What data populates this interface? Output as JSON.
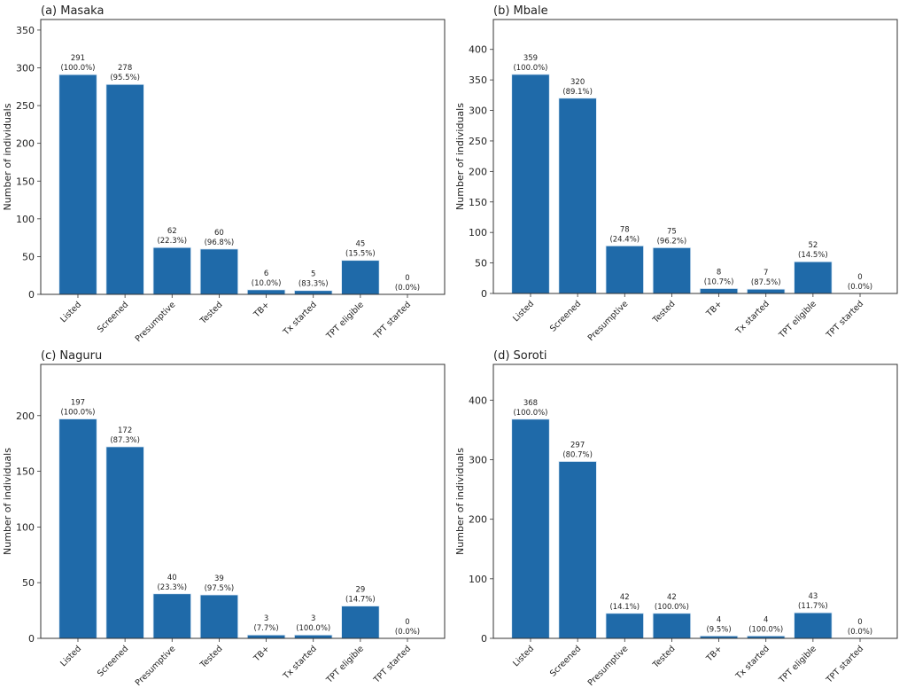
{
  "chart_data": [
    {
      "type": "bar",
      "title": "(a) Masaka",
      "ylabel": "Number of individuals",
      "categories": [
        "Listed",
        "Screened",
        "Presumptive",
        "Tested",
        "TB+",
        "Tx started",
        "TPT eligible",
        "TPT started"
      ],
      "values": [
        291,
        278,
        62,
        60,
        6,
        5,
        45,
        0
      ],
      "data_labels": [
        "(100.0%)",
        "(95.5%)",
        "(22.3%)",
        "(96.8%)",
        "(10.0%)",
        "(83.3%)",
        "(15.5%)",
        "(0.0%)"
      ],
      "yticks": [
        0,
        50,
        100,
        150,
        200,
        250,
        300,
        350
      ],
      "ylim": [
        0,
        364
      ],
      "grid": false
    },
    {
      "type": "bar",
      "title": "(b) Mbale",
      "ylabel": "Number of individuals",
      "categories": [
        "Listed",
        "Screened",
        "Presumptive",
        "Tested",
        "TB+",
        "Tx started",
        "TPT eligible",
        "TPT started"
      ],
      "values": [
        359,
        320,
        78,
        75,
        8,
        7,
        52,
        0
      ],
      "data_labels": [
        "(100.0%)",
        "(89.1%)",
        "(24.4%)",
        "(96.2%)",
        "(10.7%)",
        "(87.5%)",
        "(14.5%)",
        "(0.0%)"
      ],
      "yticks": [
        0,
        50,
        100,
        150,
        200,
        250,
        300,
        350,
        400
      ],
      "ylim": [
        0,
        449
      ],
      "grid": false
    },
    {
      "type": "bar",
      "title": "(c) Naguru",
      "ylabel": "Number of individuals",
      "categories": [
        "Listed",
        "Screened",
        "Presumptive",
        "Tested",
        "TB+",
        "Tx started",
        "TPT eligible",
        "TPT started"
      ],
      "values": [
        197,
        172,
        40,
        39,
        3,
        3,
        29,
        0
      ],
      "data_labels": [
        "(100.0%)",
        "(87.3%)",
        "(23.3%)",
        "(97.5%)",
        "(7.7%)",
        "(100.0%)",
        "(14.7%)",
        "(0.0%)"
      ],
      "yticks": [
        0,
        50,
        100,
        150,
        200
      ],
      "ylim": [
        0,
        246
      ],
      "grid": false
    },
    {
      "type": "bar",
      "title": "(d) Soroti",
      "ylabel": "Number of individuals",
      "categories": [
        "Listed",
        "Screened",
        "Presumptive",
        "Tested",
        "TB+",
        "Tx started",
        "TPT eligible",
        "TPT started"
      ],
      "values": [
        368,
        297,
        42,
        42,
        4,
        4,
        43,
        0
      ],
      "data_labels": [
        "(100.0%)",
        "(80.7%)",
        "(14.1%)",
        "(100.0%)",
        "(9.5%)",
        "(100.0%)",
        "(11.7%)",
        "(0.0%)"
      ],
      "yticks": [
        0,
        100,
        200,
        300,
        400
      ],
      "ylim": [
        0,
        460
      ],
      "grid": false
    }
  ],
  "colors": {
    "bar": "#1f6aa9",
    "bar_edge": "#dbe9f6",
    "axis": "#333333"
  }
}
